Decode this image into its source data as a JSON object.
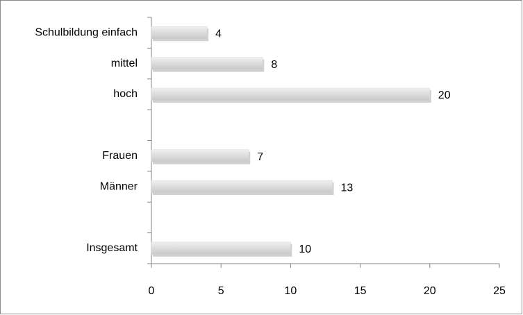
{
  "chart_data": {
    "type": "bar",
    "orientation": "horizontal",
    "categories": [
      "Schulbildung einfach",
      "mittel",
      "hoch",
      null,
      "Frauen",
      "Männer",
      null,
      "Insgesamt"
    ],
    "values": [
      4,
      8,
      20,
      null,
      7,
      13,
      null,
      10
    ],
    "color": "#d9d9d9",
    "xlim": [
      0,
      25
    ],
    "xticks": [
      0,
      5,
      10,
      15,
      20,
      25
    ],
    "grid": false,
    "data_labels": true
  }
}
